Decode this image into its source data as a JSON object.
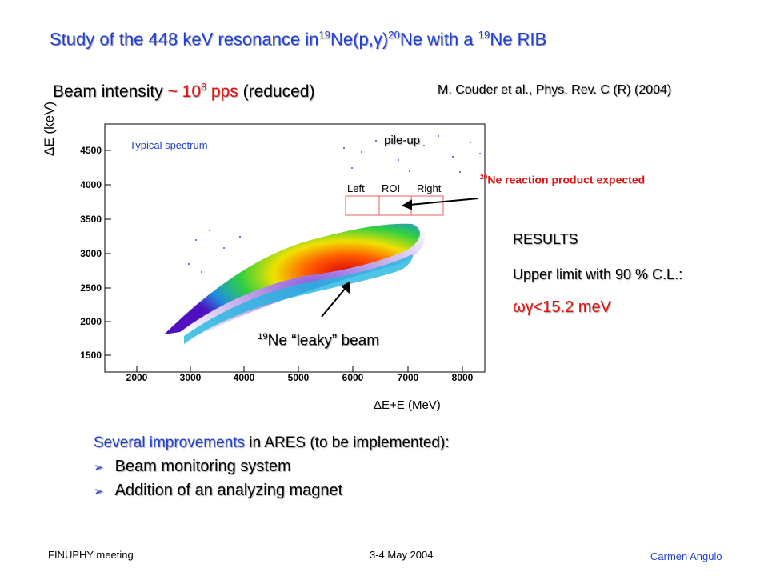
{
  "title": {
    "prefix": "Study of the 448 keV resonance in",
    "sup1": "19",
    "mid1": "Ne(p,",
    "gamma": "γ",
    "mid2": ")",
    "sup2": "20",
    "mid3": "Ne with a ",
    "sup3": "19",
    "suffix": "Ne RIB"
  },
  "beam_intensity": {
    "label": "Beam intensity",
    "tilde": " ~ 10",
    "exp": "8",
    "unit": " pps",
    "note": " (reduced)"
  },
  "reference": "M. Couder et al., Phys. Rev. C (R) (2004)",
  "plot": {
    "y_axis_label": "ΔE (keV)",
    "x_axis_label": "ΔE+E (MeV)",
    "y_ticks": [
      "4500",
      "4000",
      "3500",
      "3000",
      "2500",
      "2000",
      "1500"
    ],
    "x_ticks": [
      "2000",
      "3000",
      "4000",
      "5000",
      "6000",
      "7000",
      "8000"
    ],
    "inset_label": "Typical spectrum",
    "pileup_label": "pile-up",
    "regions": [
      "Left",
      "ROI",
      "Right"
    ]
  },
  "annotations": {
    "product_sup": "20",
    "product_text": "Ne  reaction product expected",
    "leaky_sup": "19",
    "leaky_text": "Ne “leaky” beam"
  },
  "results": {
    "heading": "RESULTS",
    "line": "Upper limit with 90 % C.L.:",
    "value": "ωγ<15.2 meV"
  },
  "improvements": {
    "intro_highlight": "Several improvements",
    "intro_rest": " in ARES (to be implemented):",
    "items": [
      "Beam monitoring system",
      "Addition of an analyzing magnet"
    ]
  },
  "footer": {
    "left": "FINUPHY meeting",
    "center": "3-4 May 2004",
    "right": "Carmen Angulo"
  },
  "colors": {
    "title_blue": "#1f3fd6",
    "annotation_red": "#e0100e"
  }
}
